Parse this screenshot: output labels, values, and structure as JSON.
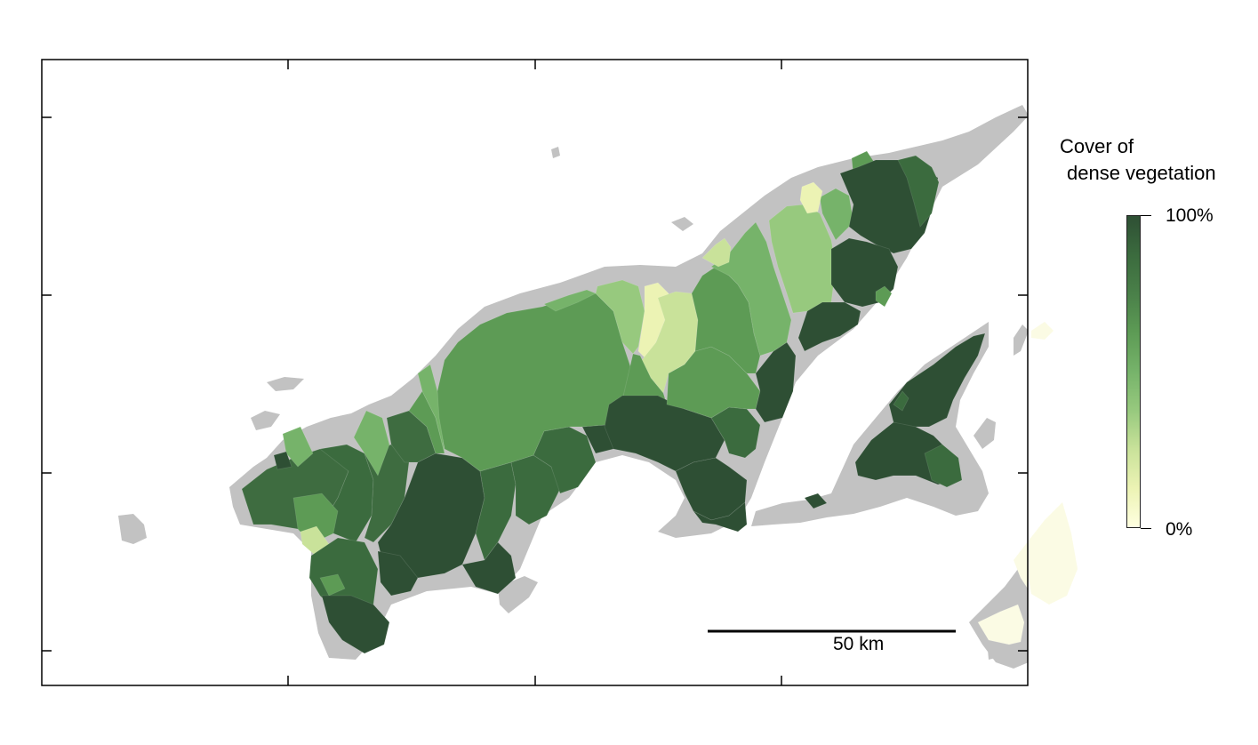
{
  "map": {
    "background": "#ffffff",
    "land_color": "#c2c2c2",
    "land_faint_color": "#fbfbe4",
    "color_ramp": [
      "#ffffe0",
      "#ecf3b4",
      "#c9e29a",
      "#97c97e",
      "#76b36a",
      "#5d9b55",
      "#4a8049",
      "#3b6b3e",
      "#2e4f34"
    ]
  },
  "legend": {
    "title_line1": "Cover of",
    "title_line2": "dense vegetation",
    "max_label": "100%",
    "min_label": "0%",
    "min_color": "#ffffe6",
    "max_color": "#2d4a32"
  },
  "scale_bar": {
    "label": "50 km"
  }
}
